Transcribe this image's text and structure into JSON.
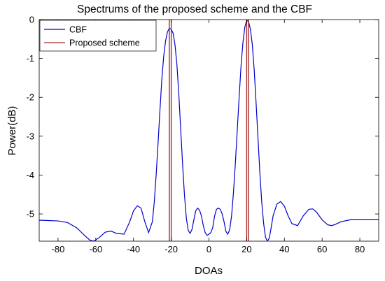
{
  "chart_data": {
    "type": "line",
    "title": "Spectrums of the proposed scheme and the CBF",
    "xlabel": "DOAs",
    "ylabel": "Power(dB)",
    "xlim": [
      -90,
      90
    ],
    "ylim": [
      -5.7,
      0
    ],
    "xticks": [
      -80,
      -60,
      -40,
      -20,
      0,
      20,
      40,
      60,
      80
    ],
    "yticks": [
      0,
      -1,
      -2,
      -3,
      -4,
      -5
    ],
    "grid": false,
    "legend_position": "top-left",
    "series": [
      {
        "name": "CBF",
        "color": "#0000cc",
        "x": [
          -90,
          -80,
          -75,
          -70,
          -66,
          -63,
          -61,
          -58,
          -55,
          -52,
          -49,
          -45,
          -42,
          -40,
          -38,
          -36,
          -34,
          -32,
          -30,
          -29,
          -28,
          -27,
          -26,
          -25,
          -24,
          -23,
          -22,
          -21,
          -20,
          -19,
          -18,
          -17,
          -16,
          -15,
          -14,
          -13,
          -12,
          -11,
          -10,
          -9,
          -8,
          -7,
          -6,
          -5,
          -4,
          -3,
          -2,
          -1,
          0,
          1,
          2,
          3,
          4,
          5,
          6,
          7,
          8,
          9,
          10,
          11,
          12,
          13,
          14,
          15,
          16,
          17,
          18,
          19,
          20,
          21,
          22,
          23,
          24,
          25,
          26,
          27,
          28,
          29,
          30,
          31,
          32,
          33,
          34,
          36,
          38,
          40,
          42,
          44,
          47,
          50,
          53,
          55,
          57,
          60,
          63,
          65,
          67,
          70,
          75,
          80,
          85,
          90
        ],
        "y": [
          -5.16,
          -5.18,
          -5.22,
          -5.36,
          -5.55,
          -5.68,
          -5.7,
          -5.6,
          -5.47,
          -5.44,
          -5.5,
          -5.52,
          -5.2,
          -4.92,
          -4.79,
          -4.85,
          -5.2,
          -5.48,
          -5.2,
          -4.7,
          -4.0,
          -3.2,
          -2.35,
          -1.55,
          -0.95,
          -0.55,
          -0.32,
          -0.22,
          -0.25,
          -0.35,
          -0.65,
          -1.15,
          -1.9,
          -2.8,
          -3.7,
          -4.5,
          -5.1,
          -5.42,
          -5.5,
          -5.4,
          -5.15,
          -4.92,
          -4.85,
          -4.9,
          -5.05,
          -5.3,
          -5.48,
          -5.55,
          -5.52,
          -5.48,
          -5.35,
          -5.05,
          -4.88,
          -4.85,
          -4.88,
          -5.0,
          -5.2,
          -5.45,
          -5.52,
          -5.4,
          -5.05,
          -4.45,
          -3.7,
          -2.85,
          -2.0,
          -1.2,
          -0.6,
          -0.2,
          -0.02,
          -0.05,
          -0.25,
          -0.65,
          -1.3,
          -2.15,
          -3.05,
          -3.95,
          -4.7,
          -5.25,
          -5.6,
          -5.7,
          -5.62,
          -5.35,
          -5.05,
          -4.75,
          -4.68,
          -4.8,
          -5.05,
          -5.25,
          -5.3,
          -5.05,
          -4.88,
          -4.87,
          -4.95,
          -5.15,
          -5.28,
          -5.3,
          -5.27,
          -5.2,
          -5.15,
          -5.15,
          -5.15,
          -5.15
        ]
      },
      {
        "name": "Proposed scheme",
        "color": "#a52a2a",
        "peaks": [
          -21,
          -20,
          20,
          21
        ]
      }
    ]
  }
}
